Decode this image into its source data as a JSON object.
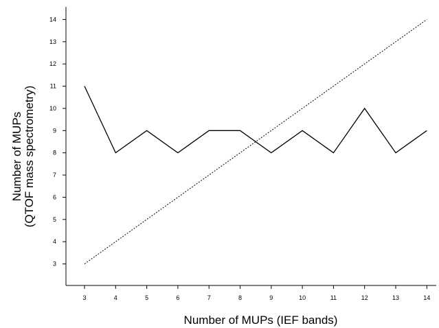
{
  "chart_data": {
    "type": "line",
    "title": "",
    "xlabel": "Number of MUPs (IEF bands)",
    "ylabel_lines": [
      "Number of MUPs",
      "(QTOF mass spectrometry)"
    ],
    "xlim": [
      2.5,
      14.2
    ],
    "ylim": [
      2,
      14.6
    ],
    "x_ticks": [
      3,
      4,
      5,
      6,
      7,
      8,
      9,
      10,
      11,
      12,
      13,
      14
    ],
    "y_ticks": [
      3,
      4,
      5,
      6,
      7,
      8,
      9,
      10,
      11,
      12,
      13,
      14
    ],
    "grid": false,
    "legend": "none",
    "series": [
      {
        "style": "solid",
        "color": "#000000",
        "x": [
          3,
          4,
          5,
          6,
          7,
          8,
          9,
          10,
          11,
          12,
          13,
          14
        ],
        "values": [
          11,
          8,
          9,
          8,
          9,
          9,
          8,
          9,
          8,
          10,
          8,
          9
        ]
      },
      {
        "style": "dotted",
        "color": "#000000",
        "x": [
          3,
          14
        ],
        "values": [
          3,
          14
        ]
      }
    ]
  }
}
